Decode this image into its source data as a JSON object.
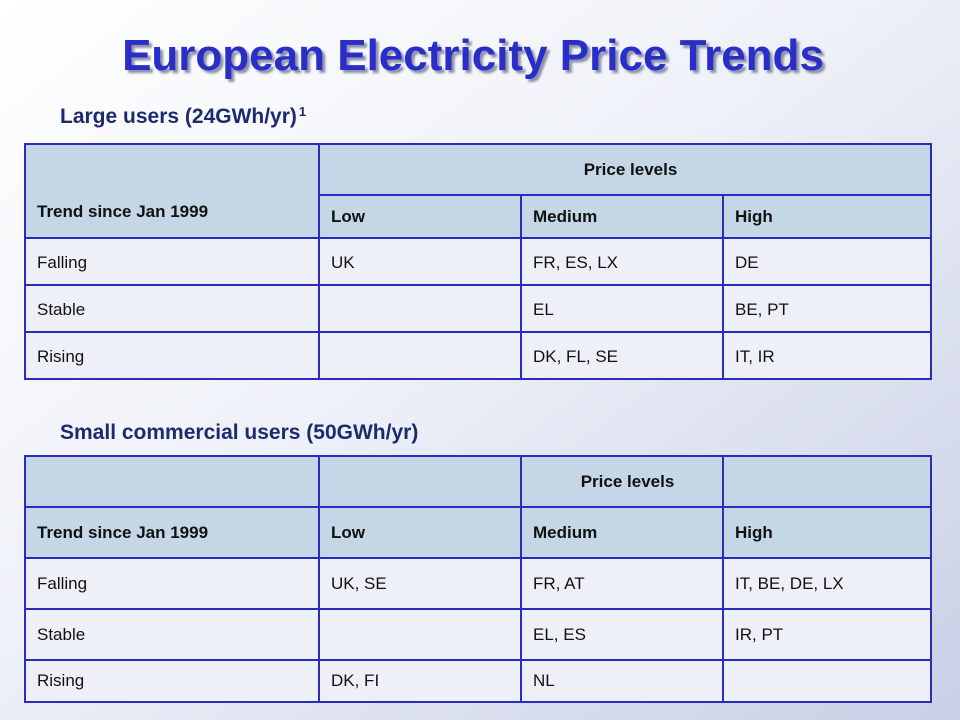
{
  "title": "European Electricity Price Trends",
  "large_users": {
    "heading": "Large users (24GWh/yr)",
    "footnote": "1",
    "price_levels": "Price levels",
    "columns": [
      "Trend since Jan 1999",
      "Low",
      "Medium",
      "High"
    ],
    "rows": [
      [
        "Falling",
        "UK",
        "FR, ES, LX",
        "DE"
      ],
      [
        "Stable",
        "",
        "EL",
        "BE, PT"
      ],
      [
        "Rising",
        "",
        "DK, FL, SE",
        "IT, IR"
      ]
    ]
  },
  "small_users": {
    "heading": "Small commercial users (50GWh/yr)",
    "price_levels": "Price levels",
    "columns": [
      "Trend since Jan 1999",
      "Low",
      "Medium",
      "High"
    ],
    "rows": [
      [
        "Falling",
        "UK, SE",
        "FR, AT",
        "IT, BE, DE, LX"
      ],
      [
        "Stable",
        "",
        "EL, ES",
        "IR, PT"
      ],
      [
        "Rising",
        "DK, FI",
        "NL",
        ""
      ]
    ]
  },
  "colors": {
    "title": "#2a2ec8",
    "heading": "#1e2a6e",
    "table_border": "#2b2bbf",
    "header_fill": "#c5d6e6",
    "cell_fill": "#eef0f7"
  }
}
